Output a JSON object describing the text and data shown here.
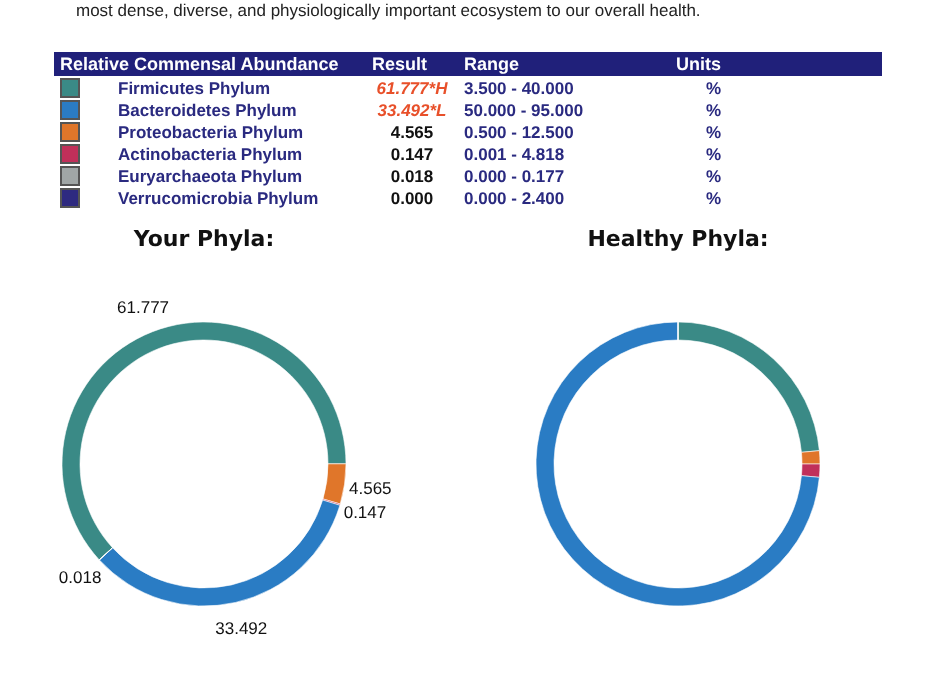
{
  "chart_data": [
    {
      "type": "other",
      "annotations": [
        "most dense, diverse, and physiologically important ecosystem to our overall health.",
        "Relative Commensal Abundance",
        "Result",
        "Range",
        "Units"
      ],
      "categories": [
        "Firmicutes Phylum",
        "Bacteroidetes Phylum",
        "Proteobacteria Phylum",
        "Actinobacteria Phylum",
        "Euryarchaeota Phylum",
        "Verrucomicrobia Phylum"
      ],
      "colors": [
        "#3a8a86",
        "#2a7cc4",
        "#e0762a",
        "#c0305a",
        "#a0a6a6",
        "#2e2a80"
      ],
      "cell_labels": [
        [
          "61.777*H",
          "3.500 - 40.000",
          "%"
        ],
        [
          "33.492*L",
          "50.000 - 95.000",
          "%"
        ],
        [
          "4.565",
          "0.500 - 12.500",
          "%"
        ],
        [
          "0.147",
          "0.001 - 4.818",
          "%"
        ],
        [
          "0.018",
          "0.000 - 0.177",
          "%"
        ],
        [
          "0.000",
          "0.000 - 2.400",
          "%"
        ]
      ]
    },
    {
      "type": "donut",
      "title": "Your Phyla:",
      "values": [
        61.777,
        4.565,
        0.147,
        33.492,
        0.018,
        0.0
      ],
      "colors": [
        "#3a8a86",
        "#e0762a",
        "#c0305a",
        "#2a7cc4",
        "#a0a6a6",
        "#2e2a80"
      ],
      "value_labels": [
        "61.777",
        "4.565",
        "0.147",
        "33.492",
        "0.018",
        null
      ]
    },
    {
      "type": "donut",
      "title": "Healthy Phyla:",
      "values": [
        23.5,
        1.5,
        1.5,
        73.5,
        0,
        0
      ],
      "colors": [
        "#3a8a86",
        "#e0762a",
        "#c0305a",
        "#2a7cc4",
        "#a0a6a6",
        "#2e2a80"
      ]
    }
  ]
}
